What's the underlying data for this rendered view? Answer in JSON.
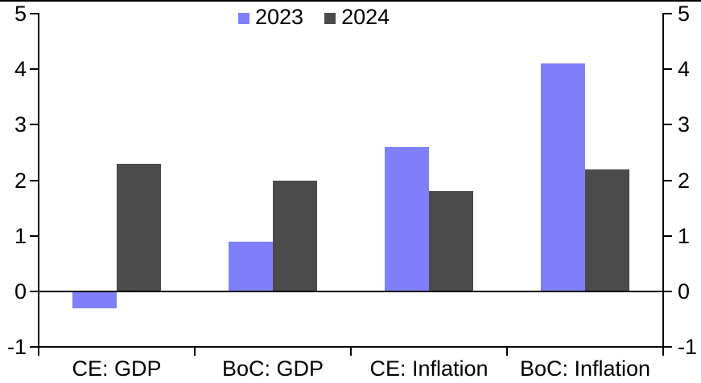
{
  "chart_data": {
    "type": "bar",
    "title": "",
    "xlabel": "",
    "ylabel": "",
    "categories": [
      "CE: GDP",
      "BoC: GDP",
      "CE: Inflation",
      "BoC: Inflation"
    ],
    "series": [
      {
        "name": "2023",
        "color": "#8080FA",
        "values": [
          -0.3,
          0.9,
          2.6,
          4.1
        ]
      },
      {
        "name": "2024",
        "color": "#4B4B4B",
        "values": [
          2.3,
          2.0,
          1.8,
          2.2
        ]
      }
    ],
    "ylim": [
      -1,
      5
    ],
    "y_ticks": [
      5,
      4,
      3,
      2,
      1,
      0,
      -1
    ],
    "dual_axis": true,
    "grid": false,
    "legend_position": "top-center",
    "axis_color": "#000000",
    "background_color": "#FFFFFF"
  }
}
